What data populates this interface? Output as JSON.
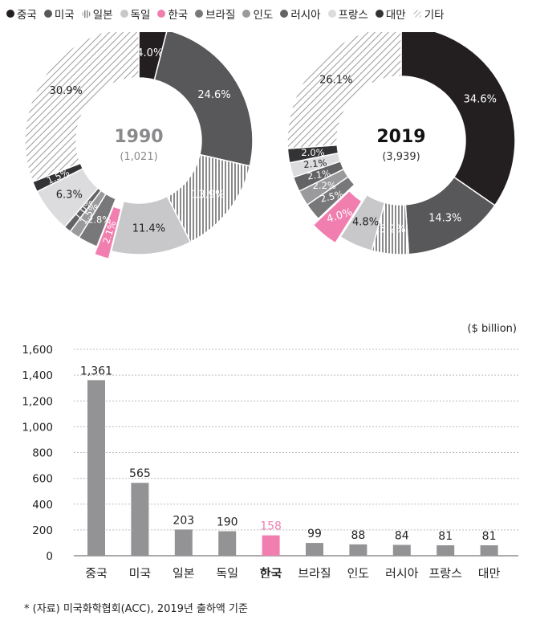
{
  "legend": [
    {
      "label": "중국",
      "color": "#231f20",
      "pattern": "solid"
    },
    {
      "label": "미국",
      "color": "#58585a",
      "pattern": "solid"
    },
    {
      "label": "일본",
      "color": "#8a8a8c",
      "pattern": "vlines"
    },
    {
      "label": "독일",
      "color": "#c8c8ca",
      "pattern": "solid"
    },
    {
      "label": "한국",
      "color": "#f07fb0",
      "pattern": "solid"
    },
    {
      "label": "브라질",
      "color": "#78787a",
      "pattern": "solid"
    },
    {
      "label": "인도",
      "color": "#9a9a9c",
      "pattern": "solid"
    },
    {
      "label": "러시아",
      "color": "#636365",
      "pattern": "solid"
    },
    {
      "label": "프랑스",
      "color": "#dcdcde",
      "pattern": "solid"
    },
    {
      "label": "대만",
      "color": "#333335",
      "pattern": "solid"
    },
    {
      "label": "기타",
      "color": "#9a9a9c",
      "pattern": "diag"
    }
  ],
  "chart_data": [
    {
      "type": "pie",
      "variant": "donut",
      "center_title": "1990",
      "center_subtitle": "(1,021)",
      "categories": [
        "중국",
        "미국",
        "일본",
        "독일",
        "한국",
        "브라질",
        "인도",
        "러시아",
        "프랑스",
        "대만",
        "기타"
      ],
      "values": [
        4.0,
        24.6,
        13.9,
        11.4,
        2.1,
        2.8,
        1.5,
        1.0,
        6.3,
        1.5,
        30.9
      ],
      "labels": [
        "4.0%",
        "24.6%",
        "13.9%",
        "11.4%",
        "2.1%",
        "2.8%",
        "1.5%",
        "1.0%",
        "6.3%",
        "1.5%",
        "30.9%"
      ]
    },
    {
      "type": "pie",
      "variant": "donut",
      "center_title": "2019",
      "center_subtitle": "(3,939)",
      "categories": [
        "중국",
        "미국",
        "일본",
        "독일",
        "한국",
        "브라질",
        "인도",
        "러시아",
        "프랑스",
        "대만",
        "기타"
      ],
      "values": [
        34.6,
        14.3,
        5.2,
        4.8,
        4.0,
        2.5,
        2.2,
        2.1,
        2.1,
        2.0,
        26.1
      ],
      "labels": [
        "34.6%",
        "14.3%",
        "5.2%",
        "4.8%",
        "4.0%",
        "2.5%",
        "2.2%",
        "2.1%",
        "2.1%",
        "2.0%",
        "26.1%"
      ]
    },
    {
      "type": "bar",
      "unit_label": "($ billion)",
      "categories": [
        "중국",
        "미국",
        "일본",
        "독일",
        "한국",
        "브라질",
        "인도",
        "러시아",
        "프랑스",
        "대만"
      ],
      "values": [
        1361,
        565,
        203,
        190,
        158,
        99,
        88,
        84,
        81,
        81
      ],
      "value_labels": [
        "1,361",
        "565",
        "203",
        "190",
        "158",
        "99",
        "88",
        "84",
        "81",
        "81"
      ],
      "highlight": "한국",
      "bar_color": "#939395",
      "highlight_color": "#f07fb0",
      "ylim": [
        0,
        1600
      ],
      "yticks": [
        0,
        200,
        400,
        600,
        800,
        1000,
        1200,
        1400,
        1600
      ],
      "ytick_labels": [
        "0",
        "200",
        "400",
        "600",
        "800",
        "1,000",
        "1,200",
        "1,400",
        "1,600"
      ]
    }
  ],
  "footnote": "* (자료) 미국화학협회(ACC), 2019년 출하액 기준"
}
